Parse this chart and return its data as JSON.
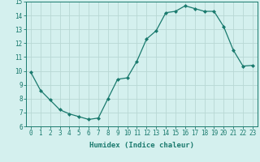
{
  "x": [
    0,
    1,
    2,
    3,
    4,
    5,
    6,
    7,
    8,
    9,
    10,
    11,
    12,
    13,
    14,
    15,
    16,
    17,
    18,
    19,
    20,
    21,
    22,
    23
  ],
  "y": [
    9.9,
    8.6,
    7.9,
    7.2,
    6.9,
    6.7,
    6.5,
    6.6,
    8.0,
    9.4,
    9.5,
    10.7,
    12.3,
    12.9,
    14.2,
    14.3,
    14.7,
    14.5,
    14.3,
    14.3,
    13.2,
    11.5,
    10.35,
    10.4
  ],
  "xlabel": "Humidex (Indice chaleur)",
  "ylim": [
    6,
    15
  ],
  "xlim_min": -0.5,
  "xlim_max": 23.5,
  "yticks": [
    6,
    7,
    8,
    9,
    10,
    11,
    12,
    13,
    14,
    15
  ],
  "xticks": [
    0,
    1,
    2,
    3,
    4,
    5,
    6,
    7,
    8,
    9,
    10,
    11,
    12,
    13,
    14,
    15,
    16,
    17,
    18,
    19,
    20,
    21,
    22,
    23
  ],
  "line_color": "#1a7a6e",
  "marker": "D",
  "marker_size": 2.0,
  "bg_color": "#d4f0ee",
  "grid_color": "#b8d8d4",
  "axis_color": "#1a7a6e",
  "label_color": "#1a7a6e",
  "tick_label_color": "#1a7a6e",
  "xlabel_fontsize": 6.5,
  "tick_fontsize": 5.5,
  "linewidth": 0.9
}
